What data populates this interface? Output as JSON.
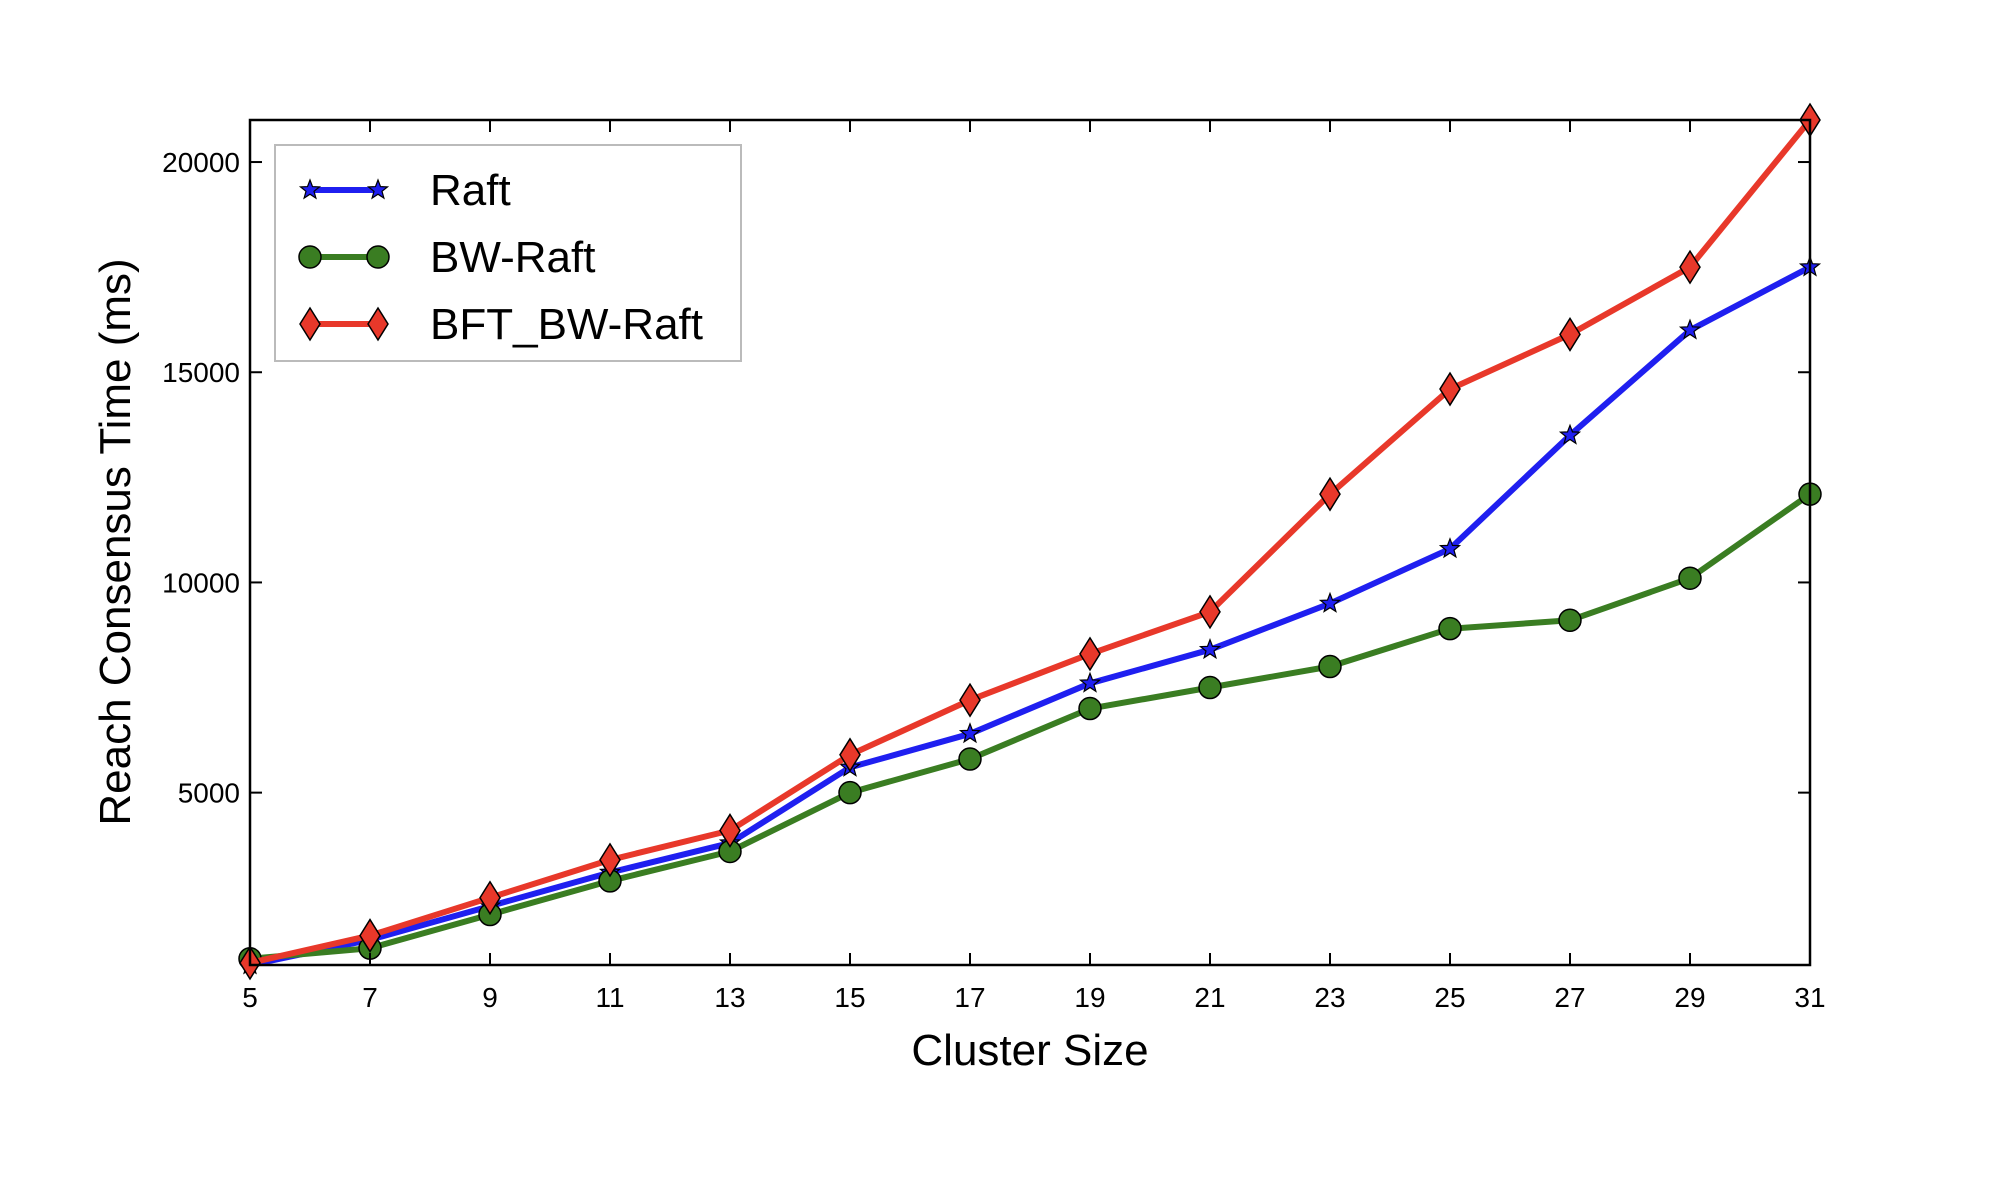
{
  "chart_data": {
    "type": "line",
    "title": "",
    "xlabel": "Cluster Size",
    "ylabel": "Reach Consensus Time (ms)",
    "xlim": [
      5,
      31
    ],
    "ylim": [
      900,
      21000
    ],
    "xticks": [
      5,
      7,
      9,
      11,
      13,
      15,
      17,
      19,
      21,
      23,
      25,
      27,
      29,
      31
    ],
    "yticks": [
      5000,
      10000,
      15000,
      20000
    ],
    "grid": false,
    "legend_position": "top-left",
    "x": [
      5,
      7,
      9,
      11,
      13,
      15,
      17,
      19,
      21,
      23,
      25,
      27,
      29,
      31
    ],
    "series": [
      {
        "name": "Raft",
        "color": "#1f1ff0",
        "marker": "star",
        "values": [
          900,
          1500,
          2300,
          3100,
          3800,
          5600,
          6400,
          7600,
          8400,
          9500,
          10800,
          13500,
          16000,
          17500
        ]
      },
      {
        "name": "BW-Raft",
        "color": "#3a7d22",
        "marker": "circle",
        "values": [
          1050,
          1300,
          2100,
          2900,
          3600,
          5000,
          5800,
          7000,
          7500,
          8000,
          8900,
          9100,
          10100,
          12100
        ]
      },
      {
        "name": "BFT_BW-Raft",
        "color": "#e8382a",
        "marker": "diamond",
        "values": [
          950,
          1600,
          2500,
          3400,
          4100,
          5900,
          7200,
          8300,
          9300,
          12100,
          14600,
          15900,
          17500,
          21000
        ]
      }
    ]
  }
}
